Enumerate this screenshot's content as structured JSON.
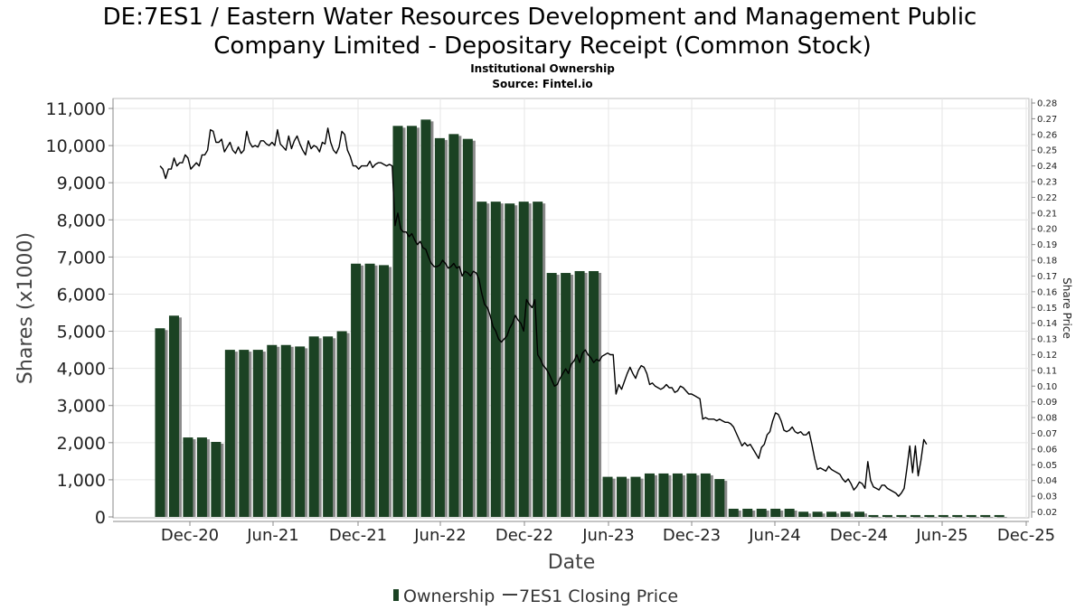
{
  "chart_data": {
    "type": "bar",
    "title_line1": "DE:7ES1 / Eastern Water Resources Development and Management Public",
    "title_line2": "Company Limited - Depositary Receipt (Common Stock)",
    "subtitle1": "Institutional Ownership",
    "subtitle2": "Source: Fintel.io",
    "xlabel": "Date",
    "ylabel": "Shares (x1000)",
    "ylabel_right": "Share Price",
    "ylim": [
      0,
      11000
    ],
    "ylim_right": [
      0.02,
      0.28
    ],
    "grid": true,
    "legend_position": "bottom-center",
    "y_ticks": [
      "0",
      "1,000",
      "2,000",
      "3,000",
      "4,000",
      "5,000",
      "6,000",
      "7,000",
      "8,000",
      "9,000",
      "10,000",
      "11,000"
    ],
    "y_right_ticks": [
      "0.02",
      "0.03",
      "0.04",
      "0.05",
      "0.06",
      "0.07",
      "0.08",
      "0.09",
      "0.10",
      "0.11",
      "0.12",
      "0.13",
      "0.14",
      "0.15",
      "0.16",
      "0.17",
      "0.18",
      "0.19",
      "0.20",
      "0.21",
      "0.22",
      "0.23",
      "0.24",
      "0.25",
      "0.26",
      "0.27",
      "0.28"
    ],
    "x_ticks": [
      "Dec-20",
      "Jun-21",
      "Dec-21",
      "Jun-22",
      "Dec-22",
      "Jun-23",
      "Dec-23",
      "Jun-24",
      "Dec-24",
      "Jun-25",
      "Dec-25"
    ],
    "series": [
      {
        "name": "Ownership",
        "type": "bar",
        "color": "#1b4223",
        "values": [
          5080,
          5420,
          2140,
          2140,
          2020,
          4500,
          4500,
          4500,
          4630,
          4630,
          4590,
          4860,
          4860,
          5000,
          6820,
          6820,
          6780,
          10530,
          10530,
          10700,
          10200,
          10310,
          10180,
          8490,
          8490,
          8440,
          8490,
          8490,
          6570,
          6570,
          6620,
          6620,
          1080,
          1080,
          1080,
          1170,
          1170,
          1170,
          1170,
          1170,
          1020,
          220,
          220,
          220,
          220,
          220,
          140,
          140,
          140,
          140,
          140,
          50,
          50,
          50,
          50,
          50,
          50,
          50,
          50,
          50,
          50
        ]
      },
      {
        "name": "7ES1 Closing Price",
        "type": "line",
        "color": "#000000",
        "points": [
          [
            0,
            0.24
          ],
          [
            0.2,
            0.238
          ],
          [
            0.4,
            0.232
          ],
          [
            0.6,
            0.238
          ],
          [
            0.8,
            0.238
          ],
          [
            1.0,
            0.245
          ],
          [
            1.2,
            0.24
          ],
          [
            1.4,
            0.242
          ],
          [
            1.6,
            0.242
          ],
          [
            1.8,
            0.247
          ],
          [
            2.0,
            0.245
          ],
          [
            2.2,
            0.238
          ],
          [
            2.4,
            0.24
          ],
          [
            2.6,
            0.242
          ],
          [
            2.8,
            0.24
          ],
          [
            3.0,
            0.247
          ],
          [
            3.2,
            0.247
          ],
          [
            3.4,
            0.25
          ],
          [
            3.6,
            0.263
          ],
          [
            3.8,
            0.262
          ],
          [
            4.0,
            0.255
          ],
          [
            4.2,
            0.255
          ],
          [
            4.4,
            0.257
          ],
          [
            4.6,
            0.249
          ],
          [
            4.8,
            0.252
          ],
          [
            5.0,
            0.255
          ],
          [
            5.2,
            0.25
          ],
          [
            5.4,
            0.248
          ],
          [
            5.6,
            0.252
          ],
          [
            5.8,
            0.248
          ],
          [
            6.0,
            0.25
          ],
          [
            6.2,
            0.262
          ],
          [
            6.4,
            0.255
          ],
          [
            6.6,
            0.252
          ],
          [
            6.8,
            0.253
          ],
          [
            7.0,
            0.252
          ],
          [
            7.2,
            0.256
          ],
          [
            7.4,
            0.256
          ],
          [
            7.6,
            0.254
          ],
          [
            7.8,
            0.253
          ],
          [
            8.0,
            0.255
          ],
          [
            8.2,
            0.253
          ],
          [
            8.4,
            0.263
          ],
          [
            8.6,
            0.254
          ],
          [
            8.8,
            0.252
          ],
          [
            9.0,
            0.25
          ],
          [
            9.2,
            0.259
          ],
          [
            9.4,
            0.251
          ],
          [
            9.6,
            0.256
          ],
          [
            9.8,
            0.259
          ],
          [
            10.0,
            0.254
          ],
          [
            10.2,
            0.25
          ],
          [
            10.4,
            0.247
          ],
          [
            10.6,
            0.256
          ],
          [
            10.8,
            0.251
          ],
          [
            11.0,
            0.253
          ],
          [
            11.2,
            0.252
          ],
          [
            11.4,
            0.249
          ],
          [
            11.6,
            0.255
          ],
          [
            11.8,
            0.254
          ],
          [
            12.0,
            0.264
          ],
          [
            12.2,
            0.255
          ],
          [
            12.4,
            0.25
          ],
          [
            12.6,
            0.248
          ],
          [
            12.8,
            0.252
          ],
          [
            13.0,
            0.262
          ],
          [
            13.2,
            0.26
          ],
          [
            13.4,
            0.25
          ],
          [
            13.6,
            0.246
          ],
          [
            13.8,
            0.24
          ],
          [
            14.0,
            0.24
          ],
          [
            14.2,
            0.238
          ],
          [
            14.4,
            0.24
          ],
          [
            14.6,
            0.24
          ],
          [
            14.8,
            0.24
          ],
          [
            15.0,
            0.243
          ],
          [
            15.2,
            0.239
          ],
          [
            15.4,
            0.241
          ],
          [
            15.6,
            0.242
          ],
          [
            15.8,
            0.242
          ],
          [
            16.0,
            0.241
          ],
          [
            16.2,
            0.24
          ],
          [
            16.4,
            0.241
          ],
          [
            16.6,
            0.24
          ],
          [
            16.8,
            0.202
          ],
          [
            17.0,
            0.21
          ],
          [
            17.2,
            0.2
          ],
          [
            17.4,
            0.198
          ],
          [
            17.6,
            0.198
          ],
          [
            17.8,
            0.195
          ],
          [
            18.0,
            0.197
          ],
          [
            18.2,
            0.193
          ],
          [
            18.4,
            0.19
          ],
          [
            18.6,
            0.192
          ],
          [
            18.8,
            0.188
          ],
          [
            19.0,
            0.187
          ],
          [
            19.2,
            0.182
          ],
          [
            19.4,
            0.178
          ],
          [
            19.6,
            0.176
          ],
          [
            19.8,
            0.176
          ],
          [
            20.0,
            0.177
          ],
          [
            20.2,
            0.18
          ],
          [
            20.4,
            0.178
          ],
          [
            20.6,
            0.175
          ],
          [
            20.8,
            0.176
          ],
          [
            21.0,
            0.178
          ],
          [
            21.2,
            0.175
          ],
          [
            21.4,
            0.176
          ],
          [
            21.6,
            0.17
          ],
          [
            21.8,
            0.173
          ],
          [
            22.0,
            0.172
          ],
          [
            22.2,
            0.17
          ],
          [
            22.4,
            0.173
          ],
          [
            22.6,
            0.172
          ],
          [
            22.8,
            0.168
          ],
          [
            23.0,
            0.159
          ],
          [
            23.2,
            0.152
          ],
          [
            23.4,
            0.15
          ],
          [
            23.6,
            0.145
          ],
          [
            23.8,
            0.138
          ],
          [
            24.0,
            0.135
          ],
          [
            24.2,
            0.13
          ],
          [
            24.4,
            0.128
          ],
          [
            24.6,
            0.13
          ],
          [
            24.8,
            0.132
          ],
          [
            25.0,
            0.137
          ],
          [
            25.2,
            0.14
          ],
          [
            25.4,
            0.145
          ],
          [
            25.6,
            0.142
          ],
          [
            25.8,
            0.14
          ],
          [
            26.0,
            0.135
          ],
          [
            26.2,
            0.155
          ],
          [
            26.4,
            0.152
          ],
          [
            26.6,
            0.15
          ],
          [
            26.8,
            0.155
          ],
          [
            27.0,
            0.12
          ],
          [
            27.2,
            0.117
          ],
          [
            27.4,
            0.113
          ],
          [
            27.6,
            0.111
          ],
          [
            27.8,
            0.108
          ],
          [
            28.0,
            0.104
          ],
          [
            28.2,
            0.1
          ],
          [
            28.4,
            0.101
          ],
          [
            28.6,
            0.105
          ],
          [
            28.8,
            0.108
          ],
          [
            29.0,
            0.111
          ],
          [
            29.2,
            0.108
          ],
          [
            29.4,
            0.114
          ],
          [
            29.6,
            0.116
          ],
          [
            29.8,
            0.12
          ],
          [
            30.0,
            0.115
          ],
          [
            30.2,
            0.121
          ],
          [
            30.4,
            0.123
          ],
          [
            30.6,
            0.12
          ],
          [
            30.8,
            0.118
          ],
          [
            31.0,
            0.115
          ],
          [
            31.2,
            0.117
          ],
          [
            31.4,
            0.116
          ],
          [
            31.6,
            0.119
          ],
          [
            31.8,
            0.12
          ],
          [
            32.0,
            0.121
          ],
          [
            32.2,
            0.12
          ],
          [
            32.4,
            0.12
          ],
          [
            32.6,
            0.095
          ],
          [
            32.8,
            0.101
          ],
          [
            33.0,
            0.098
          ],
          [
            33.2,
            0.103
          ],
          [
            33.4,
            0.108
          ],
          [
            33.6,
            0.112
          ],
          [
            33.8,
            0.108
          ],
          [
            34.0,
            0.105
          ],
          [
            34.2,
            0.11
          ],
          [
            34.4,
            0.113
          ],
          [
            34.6,
            0.112
          ],
          [
            34.8,
            0.108
          ],
          [
            35.0,
            0.101
          ],
          [
            35.2,
            0.102
          ],
          [
            35.4,
            0.1
          ],
          [
            35.6,
            0.099
          ],
          [
            35.8,
            0.098
          ],
          [
            36.0,
            0.099
          ],
          [
            36.2,
            0.101
          ],
          [
            36.4,
            0.099
          ],
          [
            36.6,
            0.099
          ],
          [
            36.8,
            0.096
          ],
          [
            37.0,
            0.097
          ],
          [
            37.2,
            0.1
          ],
          [
            37.4,
            0.099
          ],
          [
            37.6,
            0.097
          ],
          [
            37.8,
            0.095
          ],
          [
            38.0,
            0.095
          ],
          [
            38.2,
            0.094
          ],
          [
            38.4,
            0.093
          ],
          [
            38.6,
            0.092
          ],
          [
            38.8,
            0.079
          ],
          [
            39.0,
            0.08
          ],
          [
            39.2,
            0.079
          ],
          [
            39.4,
            0.079
          ],
          [
            39.6,
            0.079
          ],
          [
            39.8,
            0.078
          ],
          [
            40.0,
            0.079
          ],
          [
            40.2,
            0.078
          ],
          [
            40.4,
            0.077
          ],
          [
            40.6,
            0.077
          ],
          [
            40.8,
            0.076
          ],
          [
            41.0,
            0.074
          ],
          [
            41.2,
            0.07
          ],
          [
            41.4,
            0.066
          ],
          [
            41.6,
            0.062
          ],
          [
            41.8,
            0.064
          ],
          [
            42.0,
            0.062
          ],
          [
            42.2,
            0.063
          ],
          [
            42.4,
            0.06
          ],
          [
            42.6,
            0.057
          ],
          [
            42.8,
            0.054
          ],
          [
            43.0,
            0.061
          ],
          [
            43.2,
            0.063
          ],
          [
            43.4,
            0.069
          ],
          [
            43.6,
            0.071
          ],
          [
            43.8,
            0.078
          ],
          [
            44.0,
            0.083
          ],
          [
            44.2,
            0.082
          ],
          [
            44.4,
            0.078
          ],
          [
            44.6,
            0.072
          ],
          [
            44.8,
            0.071
          ],
          [
            45.0,
            0.072
          ],
          [
            45.2,
            0.074
          ],
          [
            45.4,
            0.071
          ],
          [
            45.6,
            0.07
          ],
          [
            45.8,
            0.071
          ],
          [
            46.0,
            0.069
          ],
          [
            46.2,
            0.069
          ],
          [
            46.4,
            0.071
          ],
          [
            46.6,
            0.063
          ],
          [
            46.8,
            0.054
          ],
          [
            47.0,
            0.047
          ],
          [
            47.2,
            0.048
          ],
          [
            47.4,
            0.047
          ],
          [
            47.6,
            0.046
          ],
          [
            47.8,
            0.049
          ],
          [
            48.0,
            0.047
          ],
          [
            48.2,
            0.046
          ],
          [
            48.4,
            0.045
          ],
          [
            48.6,
            0.044
          ],
          [
            48.8,
            0.041
          ],
          [
            49.0,
            0.039
          ],
          [
            49.2,
            0.041
          ],
          [
            49.4,
            0.038
          ],
          [
            49.6,
            0.034
          ],
          [
            49.8,
            0.036
          ],
          [
            50.0,
            0.039
          ],
          [
            50.2,
            0.038
          ],
          [
            50.4,
            0.035
          ],
          [
            50.6,
            0.052
          ],
          [
            50.8,
            0.04
          ],
          [
            51.0,
            0.036
          ],
          [
            51.2,
            0.035
          ],
          [
            51.4,
            0.034
          ],
          [
            51.6,
            0.037
          ],
          [
            51.8,
            0.037
          ],
          [
            52.0,
            0.035
          ],
          [
            52.2,
            0.034
          ],
          [
            52.4,
            0.033
          ],
          [
            52.6,
            0.032
          ],
          [
            52.8,
            0.03
          ],
          [
            53.0,
            0.032
          ],
          [
            53.2,
            0.035
          ],
          [
            53.4,
            0.048
          ],
          [
            53.6,
            0.062
          ],
          [
            53.8,
            0.045
          ],
          [
            54.0,
            0.062
          ],
          [
            54.2,
            0.043
          ],
          [
            54.4,
            0.053
          ],
          [
            54.6,
            0.066
          ],
          [
            54.8,
            0.063
          ]
        ]
      }
    ]
  },
  "legend": {
    "ownership_label": "Ownership",
    "price_label": "7ES1 Closing Price",
    "ownership_color": "#1b4223",
    "price_color": "#000000"
  }
}
